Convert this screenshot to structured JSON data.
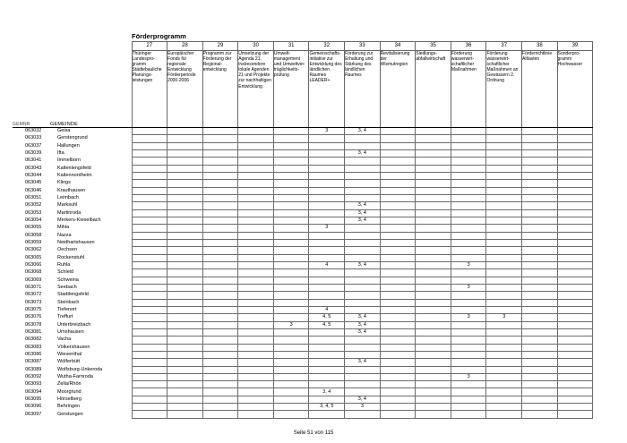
{
  "page": {
    "title": "Förderprogramm",
    "footer": "Seite 51 von 115"
  },
  "left_headers": {
    "gemnr": "GEMNR",
    "gemeinde": "GEMEINDE"
  },
  "columns": [
    {
      "id": "27",
      "label": "Thüringer Landespro-gramm Städtebauliche Planungs-leistungen"
    },
    {
      "id": "28",
      "label": "Europäischer Fonds für regionale Entwicklung Förderperiode 2000-2006"
    },
    {
      "id": "29",
      "label": "Programm zur Förderung der Regional-entwicklung"
    },
    {
      "id": "30",
      "label": "Umsetzung der Agenda 21, insbesondere lokale Agenden 21 und Projekte zur nachhaltigen Entwicklung"
    },
    {
      "id": "31",
      "label": "Umwelt-management und Umweltver-träglichkeits-prüfung"
    },
    {
      "id": "32",
      "label": "Gemeinschafts-initiative zur Entwicklung des ländlichen Raumes LEADER+"
    },
    {
      "id": "33",
      "label": "Förderung zur Erhaltung und Stärkung des ländlichen Raumes"
    },
    {
      "id": "34",
      "label": "Revitalisierung der Wismutregion"
    },
    {
      "id": "35",
      "label": "Siedlungs-abfallwirtschaft"
    },
    {
      "id": "36",
      "label": "Förderung wasserwirt-schaftlicher Maßnahmen"
    },
    {
      "id": "37",
      "label": "Förderung wasserwirt-schaftlicher Maßnahmen an Gewässern 2. Ordnung"
    },
    {
      "id": "38",
      "label": "Förderrichtlinie Altlasten"
    },
    {
      "id": "39",
      "label": "Sonderpro-gramm Hochwasser"
    }
  ],
  "rows": [
    {
      "gemnr": "063032",
      "gemeinde": "Geisa",
      "values": {
        "32": "3",
        "33": "3, 4"
      }
    },
    {
      "gemnr": "063033",
      "gemeinde": "Gerstengrund",
      "values": {}
    },
    {
      "gemnr": "063037",
      "gemeinde": "Hallungen",
      "values": {}
    },
    {
      "gemnr": "063039",
      "gemeinde": "Ifta",
      "values": {
        "33": "3, 4"
      }
    },
    {
      "gemnr": "063041",
      "gemeinde": "Immelborn",
      "values": {}
    },
    {
      "gemnr": "063043",
      "gemeinde": "Kaltenlengsfeld",
      "values": {}
    },
    {
      "gemnr": "063044",
      "gemeinde": "Kaltennordheim",
      "values": {}
    },
    {
      "gemnr": "063045",
      "gemeinde": "Klings",
      "values": {}
    },
    {
      "gemnr": "063046",
      "gemeinde": "Krauthausen",
      "values": {}
    },
    {
      "gemnr": "063051",
      "gemeinde": "Leimbach",
      "values": {}
    },
    {
      "gemnr": "063052",
      "gemeinde": "Marksuhl",
      "values": {
        "33": "3, 4"
      }
    },
    {
      "gemnr": "063053",
      "gemeinde": "Martinroda",
      "values": {
        "33": "3, 4"
      }
    },
    {
      "gemnr": "063054",
      "gemeinde": "Merkers-Kieselbach",
      "values": {
        "33": "3, 4"
      }
    },
    {
      "gemnr": "063055",
      "gemeinde": "Mihla",
      "values": {
        "32": "3"
      }
    },
    {
      "gemnr": "063058",
      "gemeinde": "Nazza",
      "values": {}
    },
    {
      "gemnr": "063059",
      "gemeinde": "Neidhartshausen",
      "values": {}
    },
    {
      "gemnr": "063062",
      "gemeinde": "Oechsen",
      "values": {}
    },
    {
      "gemnr": "063065",
      "gemeinde": "Rockenstuhl",
      "values": {}
    },
    {
      "gemnr": "063066",
      "gemeinde": "Ruhla",
      "values": {
        "32": "4",
        "33": "3, 4",
        "36": "3"
      }
    },
    {
      "gemnr": "063068",
      "gemeinde": "Schleid",
      "values": {}
    },
    {
      "gemnr": "063069",
      "gemeinde": "Schweina",
      "values": {}
    },
    {
      "gemnr": "063071",
      "gemeinde": "Seebach",
      "values": {
        "36": "3"
      }
    },
    {
      "gemnr": "063072",
      "gemeinde": "Stadtlengsfeld",
      "values": {}
    },
    {
      "gemnr": "063073",
      "gemeinde": "Steinbach",
      "values": {}
    },
    {
      "gemnr": "063075",
      "gemeinde": "Tiefenort",
      "values": {
        "32": "4"
      }
    },
    {
      "gemnr": "063076",
      "gemeinde": "Treffurt",
      "values": {
        "32": "4, 5",
        "33": "3, 4",
        "36": "3",
        "37": "3"
      }
    },
    {
      "gemnr": "063078",
      "gemeinde": "Unterbreizbach",
      "values": {
        "31": "3",
        "32": "4, 5",
        "33": "3, 4"
      }
    },
    {
      "gemnr": "063081",
      "gemeinde": "Urnshausen",
      "values": {
        "33": "3, 4"
      }
    },
    {
      "gemnr": "063082",
      "gemeinde": "Vacha",
      "values": {}
    },
    {
      "gemnr": "063083",
      "gemeinde": "Völkershausen",
      "values": {}
    },
    {
      "gemnr": "063086",
      "gemeinde": "Wiesenthal",
      "values": {}
    },
    {
      "gemnr": "063087",
      "gemeinde": "Wölferbütt",
      "values": {
        "33": "3, 4"
      }
    },
    {
      "gemnr": "063089",
      "gemeinde": "Wolfsburg-Unkeroda",
      "values": {}
    },
    {
      "gemnr": "063092",
      "gemeinde": "Wutha-Farnroda",
      "values": {
        "36": "3"
      }
    },
    {
      "gemnr": "063093",
      "gemeinde": "Zella/Rhön",
      "values": {}
    },
    {
      "gemnr": "063094",
      "gemeinde": "Moorgrund",
      "values": {
        "32": "3, 4"
      }
    },
    {
      "gemnr": "063095",
      "gemeinde": "Hörselberg",
      "values": {
        "33": "3, 4"
      }
    },
    {
      "gemnr": "063096",
      "gemeinde": "Behringen",
      "values": {
        "32": "3, 4, 5",
        "33": "3"
      }
    },
    {
      "gemnr": "063097",
      "gemeinde": "Gerstungen",
      "values": {}
    }
  ]
}
